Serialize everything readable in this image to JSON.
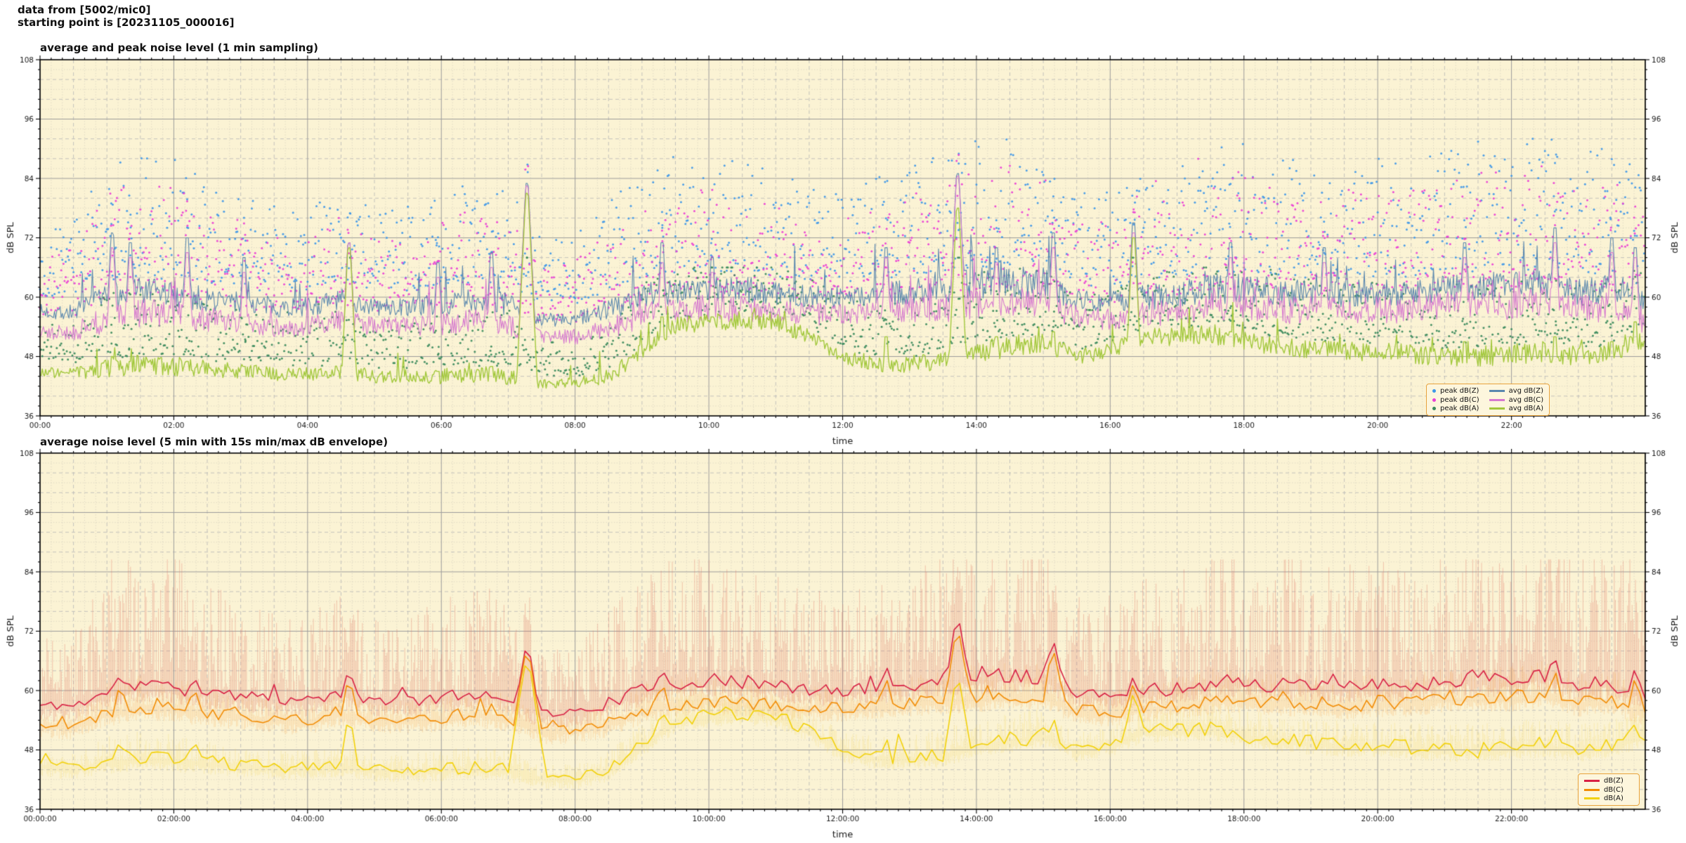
{
  "header": {
    "line1": "data from [5002/mic0]",
    "line2": "starting point is [20231105_000016]"
  },
  "style": {
    "plot_bg": "#fbf3d4",
    "grid_major": "#9b9b9b",
    "grid_minor": "#b5b5b5",
    "grid_dot": "#cfcabb",
    "spine": "#000000",
    "text": "#1a1a1a",
    "legend_bg": "#fdf6dd",
    "legend_border": "#e8a33d"
  },
  "chart_data": [
    {
      "type": "line+scatter",
      "title": "average and peak noise level (1 min sampling)",
      "xlabel": "time",
      "ylabel": "dB SPL",
      "ylim": [
        36,
        108
      ],
      "yticks": [
        36,
        48,
        60,
        72,
        84,
        96,
        108
      ],
      "xlim_hours": [
        0,
        24
      ],
      "xticks_hours": [
        0,
        2,
        4,
        6,
        8,
        10,
        12,
        14,
        16,
        18,
        20,
        22
      ],
      "xtick_labels": [
        "00:00",
        "02:00",
        "04:00",
        "06:00",
        "08:00",
        "10:00",
        "12:00",
        "14:00",
        "16:00",
        "18:00",
        "20:00",
        "22:00"
      ],
      "grid": {
        "y_major": 12,
        "y_minor": 4,
        "y_dot": 2,
        "x_major_h": 2,
        "x_minor_h": 0.5,
        "x_dot_h": 0.166667
      },
      "control_step_h": 0.5,
      "activity": [
        0.35,
        0.4,
        0.85,
        0.9,
        0.85,
        0.7,
        0.6,
        0.5,
        0.5,
        0.6,
        0.45,
        0.5,
        0.6,
        0.7,
        0.65,
        0.3,
        0.35,
        0.55,
        0.75,
        0.8,
        0.8,
        0.75,
        0.7,
        0.6,
        0.6,
        0.65,
        0.7,
        0.9,
        0.95,
        0.95,
        0.9,
        0.6,
        0.6,
        0.7,
        0.8,
        0.9,
        0.9,
        0.85,
        0.8,
        0.8,
        0.8,
        0.8,
        0.85,
        0.9,
        0.9,
        0.95,
        0.85,
        0.9,
        0.85
      ],
      "series": [
        {
          "id": "z",
          "label": "avg dB(Z)",
          "color": "#5a87ae",
          "width": 1.1,
          "seed": 7,
          "values": [
            57,
            57,
            59.5,
            61,
            60.5,
            59.5,
            59,
            58,
            58,
            59.5,
            58,
            58,
            58.5,
            59.5,
            58.5,
            55.5,
            55.5,
            57.5,
            60,
            61.5,
            62,
            61.5,
            61,
            60,
            60,
            60.5,
            61,
            62,
            62.5,
            63,
            63,
            59.5,
            59,
            60,
            60.5,
            61.5,
            62,
            61,
            61,
            60.5,
            61,
            61,
            62,
            62,
            62,
            63,
            61,
            61.5,
            59
          ]
        },
        {
          "id": "c",
          "label": "avg dB(C)",
          "color": "#d678cf",
          "width": 1.1,
          "seed": 8,
          "values": [
            53,
            53,
            55.5,
            57,
            56.5,
            55.5,
            55,
            54,
            54,
            55.5,
            54,
            54,
            54.5,
            55.5,
            54.5,
            52,
            52,
            53.5,
            56,
            57.5,
            58,
            57.5,
            57,
            56.5,
            56.5,
            57,
            57.5,
            58,
            58.5,
            59,
            59,
            56,
            55.5,
            56.5,
            57,
            58,
            58.5,
            57.5,
            57.5,
            57,
            57.5,
            57.5,
            58.5,
            58.5,
            58.5,
            59.5,
            57.5,
            58,
            55.5
          ]
        },
        {
          "id": "a",
          "label": "avg dB(A)",
          "color": "#a2c83c",
          "width": 1.4,
          "seed": 9,
          "values": [
            45,
            44.5,
            45.5,
            46.5,
            46,
            45.5,
            45,
            44.5,
            44.5,
            45,
            44,
            44,
            44,
            44.5,
            44,
            42.5,
            42.5,
            44,
            49,
            54,
            55,
            55.5,
            55,
            52,
            48,
            46.5,
            46.5,
            47,
            49,
            50,
            51,
            48,
            49,
            52,
            52,
            52.5,
            51,
            50,
            49.5,
            49,
            49,
            48.5,
            48,
            48,
            48.5,
            49,
            48,
            49,
            51
          ]
        }
      ],
      "scatter": [
        {
          "id": "z",
          "label": "peak dB(Z)",
          "color": "#3e97e8",
          "offset": 3.5,
          "spread": 21,
          "cap": 92.5,
          "seed": 101
        },
        {
          "id": "c",
          "label": "peak dB(C)",
          "color": "#ea3fd6",
          "offset": 3.5,
          "spread": 19,
          "cap": 89,
          "seed": 202
        },
        {
          "id": "a",
          "label": "peak dB(A)",
          "color": "#3a8a5c",
          "offset": 2,
          "spread": 11,
          "cap": 66,
          "seed": 303
        }
      ],
      "events": [
        {
          "t": 1.08,
          "z": 73,
          "c": 70,
          "a": 48
        },
        {
          "t": 1.35,
          "z": 71,
          "c": 68,
          "a": 47
        },
        {
          "t": 2.2,
          "z": 72,
          "c": 69,
          "a": 47
        },
        {
          "t": 3.05,
          "z": 68,
          "c": 65,
          "a": 46
        },
        {
          "t": 4.62,
          "z": 71,
          "c": 71,
          "a": 70
        },
        {
          "t": 5.95,
          "z": 67,
          "c": 64,
          "a": 45
        },
        {
          "t": 6.75,
          "z": 69,
          "c": 66,
          "a": 46
        },
        {
          "t": 7.28,
          "z": 83,
          "c": 82.5,
          "a": 81
        },
        {
          "t": 9.3,
          "z": 71,
          "c": 67,
          "a": 56
        },
        {
          "t": 10.05,
          "z": 68,
          "c": 65,
          "a": 56
        },
        {
          "t": 12.65,
          "z": 70,
          "c": 68,
          "a": 52
        },
        {
          "t": 13.72,
          "z": 85,
          "c": 84.5,
          "a": 78
        },
        {
          "t": 14.3,
          "z": 70,
          "c": 67,
          "a": 52
        },
        {
          "t": 15.15,
          "z": 73,
          "c": 70,
          "a": 53
        },
        {
          "t": 16.35,
          "z": 75,
          "c": 73,
          "a": 72
        },
        {
          "t": 17.8,
          "z": 71,
          "c": 68,
          "a": 53
        },
        {
          "t": 19.2,
          "z": 70,
          "c": 67,
          "a": 51
        },
        {
          "t": 21.3,
          "z": 71,
          "c": 68,
          "a": 51
        },
        {
          "t": 22.65,
          "z": 74,
          "c": 71,
          "a": 52
        },
        {
          "t": 23.5,
          "z": 72,
          "c": 69,
          "a": 51
        },
        {
          "t": 23.85,
          "z": 70,
          "c": 68,
          "a": 55
        }
      ]
    },
    {
      "type": "line+envelope",
      "title": "average noise level (5 min with 15s min/max dB envelope)",
      "xlabel": "time",
      "ylabel": "dB SPL",
      "ylim": [
        36,
        108
      ],
      "yticks": [
        36,
        48,
        60,
        72,
        84,
        96,
        108
      ],
      "xlim_hours": [
        0,
        24
      ],
      "xticks_hours": [
        0,
        2,
        4,
        6,
        8,
        10,
        12,
        14,
        16,
        18,
        20,
        22
      ],
      "xtick_labels": [
        "00:00:00",
        "02:00:00",
        "04:00:00",
        "06:00:00",
        "08:00:00",
        "10:00:00",
        "12:00:00",
        "14:00:00",
        "16:00:00",
        "18:00:00",
        "20:00:00",
        "22:00:00"
      ],
      "grid": {
        "y_major": 12,
        "y_minor": 4,
        "y_dot": 2,
        "x_major_h": 2,
        "x_minor_h": 0.5,
        "x_dot_h": 0.166667
      },
      "control_step_h": 0.5,
      "activity": [
        0.35,
        0.4,
        0.85,
        0.9,
        0.85,
        0.7,
        0.6,
        0.5,
        0.5,
        0.6,
        0.45,
        0.5,
        0.6,
        0.7,
        0.65,
        0.3,
        0.35,
        0.55,
        0.75,
        0.8,
        0.8,
        0.75,
        0.7,
        0.6,
        0.6,
        0.65,
        0.7,
        0.9,
        0.95,
        0.95,
        0.9,
        0.6,
        0.6,
        0.7,
        0.8,
        0.9,
        0.9,
        0.85,
        0.8,
        0.8,
        0.8,
        0.8,
        0.85,
        0.9,
        0.9,
        0.95,
        0.85,
        0.9,
        0.85
      ],
      "series": [
        {
          "id": "z",
          "label": "dB(Z)",
          "color": "#d82145",
          "width": 1.6,
          "seed": 11,
          "env_color": "rgba(224,122,106,0.40)",
          "env_up": 26,
          "env_dn": 2.6,
          "env_seed": 44,
          "values": [
            57,
            57,
            59.5,
            61,
            60.5,
            59.5,
            59,
            58,
            58,
            59.5,
            58,
            58,
            58.5,
            59.5,
            58.5,
            55.5,
            55.5,
            57.5,
            60,
            61.5,
            62,
            61.5,
            61,
            60,
            60,
            60.5,
            61,
            62,
            62.5,
            63,
            63,
            59.5,
            59,
            60,
            60.5,
            61.5,
            62,
            61,
            61,
            60.5,
            61,
            61,
            62,
            62,
            62,
            63,
            61,
            61.5,
            59
          ]
        },
        {
          "id": "c",
          "label": "dB(C)",
          "color": "#f28c05",
          "width": 1.6,
          "seed": 22,
          "env_color": "rgba(247,160,70,0.28)",
          "env_up": 6,
          "env_dn": 2.2,
          "env_seed": 55,
          "values": [
            53,
            53,
            55.5,
            57,
            56.5,
            55.5,
            55,
            54,
            54,
            55.5,
            54,
            54,
            54.5,
            55.5,
            54.5,
            52,
            52,
            53.5,
            56,
            57.5,
            58,
            57.5,
            57,
            56.5,
            56.5,
            57,
            57.5,
            58,
            58.5,
            59,
            59,
            56,
            55.5,
            56.5,
            57,
            58,
            58.5,
            57.5,
            57.5,
            57,
            57.5,
            57.5,
            58.5,
            58.5,
            58.5,
            59.5,
            57.5,
            58,
            55.5
          ]
        },
        {
          "id": "a",
          "label": "dB(A)",
          "color": "#f2d10a",
          "width": 1.6,
          "seed": 33,
          "env_color": "rgba(244,214,90,0.28)",
          "env_up": 5,
          "env_dn": 1.8,
          "env_seed": 66,
          "values": [
            45,
            44.5,
            45.5,
            46.5,
            46,
            45.5,
            45,
            44.5,
            44.5,
            45,
            44,
            44,
            44,
            44.5,
            44,
            42.5,
            42.5,
            44,
            49,
            54,
            55,
            55.5,
            55,
            52,
            48,
            46.5,
            46.5,
            47,
            49,
            50,
            51,
            48,
            49,
            52,
            52,
            52.5,
            51,
            50,
            49.5,
            49,
            49,
            48.5,
            48,
            48,
            48.5,
            49,
            48,
            49,
            51
          ]
        }
      ],
      "events": [
        {
          "t": 1.2,
          "z": 62.5,
          "c": 60,
          "a": 49
        },
        {
          "t": 2.3,
          "z": 62,
          "c": 59.5,
          "a": 49
        },
        {
          "t": 4.62,
          "z": 63,
          "c": 61,
          "a": 53
        },
        {
          "t": 7.28,
          "z": 68,
          "c": 67,
          "a": 65
        },
        {
          "t": 9.3,
          "z": 63.5,
          "c": 60.5,
          "a": 55
        },
        {
          "t": 12.65,
          "z": 64.5,
          "c": 62,
          "a": 50
        },
        {
          "t": 13.72,
          "z": 73.5,
          "c": 71,
          "a": 61.5
        },
        {
          "t": 15.15,
          "z": 69.5,
          "c": 67.5,
          "a": 54
        },
        {
          "t": 16.35,
          "z": 62.5,
          "c": 61,
          "a": 59
        },
        {
          "t": 22.65,
          "z": 66,
          "c": 63.5,
          "a": 52
        },
        {
          "t": 23.85,
          "z": 64,
          "c": 62,
          "a": 53
        }
      ]
    }
  ]
}
